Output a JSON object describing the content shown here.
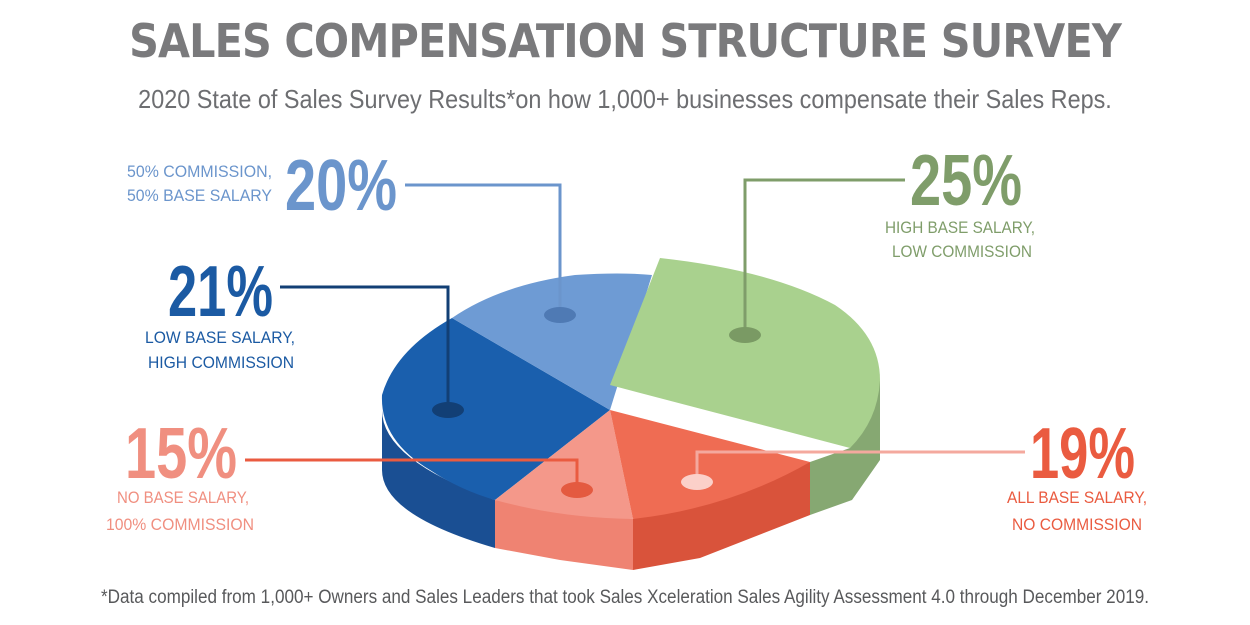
{
  "title": "SALES COMPENSATION STRUCTURE SURVEY",
  "subtitle": "2020 State of Sales Survey Results*on how 1,000+ businesses compensate their Sales Reps.",
  "footnote": "*Data compiled from 1,000+ Owners and Sales Leaders that took Sales Xceleration Sales Agility Assessment 4.0 through December 2019.",
  "chart_data": {
    "type": "pie",
    "title": "SALES COMPENSATION STRUCTURE SURVEY",
    "slices": [
      {
        "percent_label": "25%",
        "value": 25,
        "label_lines": [
          "HIGH BASE SALARY,",
          "LOW COMMISSION"
        ],
        "color": "#a9d18e",
        "label_color": "#7f9d6a"
      },
      {
        "percent_label": "19%",
        "value": 19,
        "label_lines": [
          "ALL BASE SALARY,",
          "NO COMMISSION"
        ],
        "color": "#ef6c53",
        "label_color": "#ea5b40"
      },
      {
        "percent_label": "15%",
        "value": 15,
        "label_lines": [
          "NO BASE SALARY,",
          "100% COMMISSION"
        ],
        "color": "#f4988a",
        "label_color": "#f08f80"
      },
      {
        "percent_label": "21%",
        "value": 21,
        "label_lines": [
          "LOW BASE SALARY,",
          "HIGH COMMISSION"
        ],
        "color": "#1a5fad",
        "label_color": "#1b5aa3"
      },
      {
        "percent_label": "20%",
        "value": 20,
        "label_lines": [
          "50% COMMISSION,",
          "50% BASE SALARY"
        ],
        "color": "#6e9bd4",
        "label_color": "#6b95cc"
      }
    ]
  }
}
